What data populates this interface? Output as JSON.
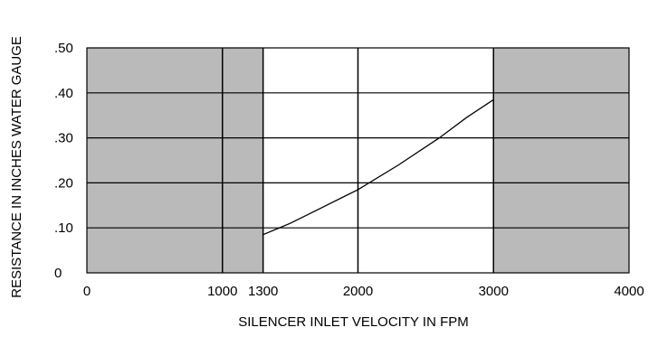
{
  "chart_data": {
    "type": "line",
    "xlabel": "SILENCER INLET VELOCITY IN FPM",
    "ylabel": "RESISTANCE IN INCHES WATER GAUGE",
    "xlim": [
      0,
      4000
    ],
    "ylim": [
      0,
      0.5
    ],
    "x_ticks": [
      {
        "value": 0,
        "label": "0"
      },
      {
        "value": 1000,
        "label": "1000"
      },
      {
        "value": 1300,
        "label": "1300"
      },
      {
        "value": 2000,
        "label": "2000"
      },
      {
        "value": 3000,
        "label": "3000"
      },
      {
        "value": 4000,
        "label": "4000"
      }
    ],
    "y_ticks": [
      {
        "value": 0,
        "label": "0"
      },
      {
        "value": 0.1,
        "label": ".10"
      },
      {
        "value": 0.2,
        "label": ".20"
      },
      {
        "value": 0.3,
        "label": ".30"
      },
      {
        "value": 0.4,
        "label": ".40"
      },
      {
        "value": 0.5,
        "label": ".50"
      }
    ],
    "grid": true,
    "vertical_gridlines": [
      1000,
      1300,
      2000,
      3000
    ],
    "shaded_x_ranges": [
      [
        0,
        1300
      ],
      [
        3000,
        4000
      ]
    ],
    "shade_color": "#bababa",
    "series": [
      {
        "x": [
          1300,
          1500,
          1700,
          2000,
          2300,
          2600,
          2800,
          3000
        ],
        "y": [
          0.085,
          0.11,
          0.14,
          0.185,
          0.24,
          0.3,
          0.345,
          0.385
        ]
      }
    ]
  }
}
